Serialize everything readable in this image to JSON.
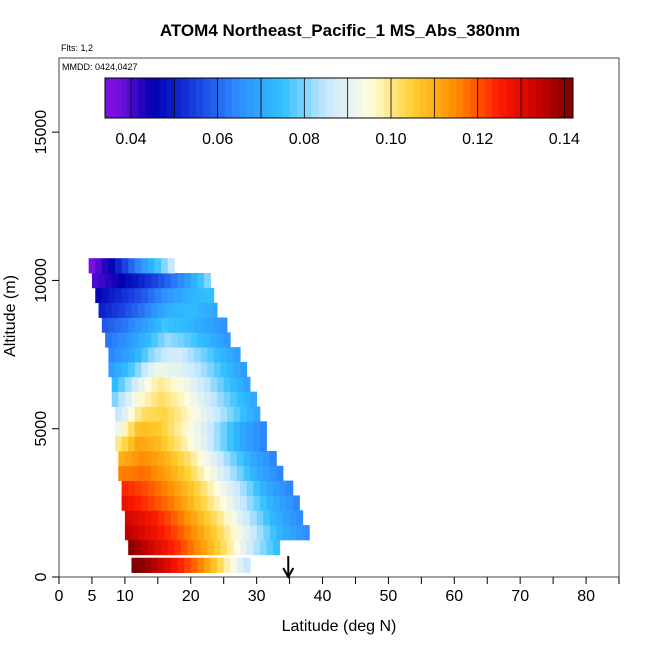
{
  "chart_data": {
    "type": "heatmap",
    "title": "ATOM4 Northeast_Pacific_1 MS_Abs_380nm",
    "flights_text": "Flts: 1,2",
    "mmdd_text": "MMDD: 0424,0427",
    "xlabel": "Latitude (deg N)",
    "ylabel": "Altitude (m)",
    "xlim": [
      0,
      85
    ],
    "ylim": [
      0,
      17500
    ],
    "x_ticks": [
      0,
      5,
      10,
      20,
      30,
      40,
      50,
      60,
      70,
      80
    ],
    "y_ticks": [
      0,
      5000,
      10000,
      15000
    ],
    "colorbar": {
      "range": [
        0.034,
        0.142
      ],
      "ticks": [
        0.04,
        0.06,
        0.08,
        0.1,
        0.12,
        0.14
      ],
      "tick_labels": [
        "0.04",
        "0.06",
        "0.08",
        "0.10",
        "0.12",
        "0.14"
      ],
      "breaks": [
        0.034,
        0.04,
        0.05,
        0.06,
        0.07,
        0.08,
        0.09,
        0.1,
        0.11,
        0.12,
        0.13,
        0.14,
        0.142
      ],
      "colors": [
        "#7a10e0",
        "#0000b0",
        "#1a40e0",
        "#2f8fff",
        "#30c0ff",
        "#c8e8ff",
        "#fffde0",
        "#ffd030",
        "#ff8c00",
        "#ff1a00",
        "#c00000",
        "#800000"
      ]
    },
    "arrow_latitude": 34.8,
    "layers": [
      {
        "alt": 400,
        "lat_min": 11,
        "lat_max": 29,
        "profile": [
          0.142,
          0.135,
          0.125,
          0.115,
          0.1,
          0.085
        ]
      },
      {
        "alt": 1000,
        "lat_min": 10.5,
        "lat_max": 33.5,
        "profile": [
          0.14,
          0.131,
          0.122,
          0.112,
          0.1,
          0.085,
          0.075
        ]
      },
      {
        "alt": 1500,
        "lat_min": 10,
        "lat_max": 38,
        "profile": [
          0.135,
          0.128,
          0.12,
          0.11,
          0.098,
          0.085,
          0.072,
          0.065
        ]
      },
      {
        "alt": 2000,
        "lat_min": 10,
        "lat_max": 37,
        "profile": [
          0.132,
          0.126,
          0.118,
          0.108,
          0.097,
          0.084,
          0.072,
          0.065
        ]
      },
      {
        "alt": 2500,
        "lat_min": 9.5,
        "lat_max": 36,
        "profile": [
          0.128,
          0.122,
          0.116,
          0.106,
          0.095,
          0.083,
          0.072,
          0.064
        ]
      },
      {
        "alt": 3000,
        "lat_min": 9.5,
        "lat_max": 35,
        "profile": [
          0.124,
          0.12,
          0.114,
          0.105,
          0.094,
          0.083,
          0.071,
          0.064
        ]
      },
      {
        "alt": 3500,
        "lat_min": 9,
        "lat_max": 34,
        "profile": [
          0.116,
          0.118,
          0.112,
          0.104,
          0.093,
          0.082,
          0.071,
          0.064
        ]
      },
      {
        "alt": 4000,
        "lat_min": 9,
        "lat_max": 32.5,
        "profile": [
          0.11,
          0.115,
          0.11,
          0.102,
          0.092,
          0.081,
          0.071,
          0.064
        ]
      },
      {
        "alt": 4500,
        "lat_min": 8.5,
        "lat_max": 31.5,
        "profile": [
          0.1,
          0.112,
          0.108,
          0.1,
          0.091,
          0.08,
          0.07,
          0.064
        ]
      },
      {
        "alt": 5000,
        "lat_min": 8.5,
        "lat_max": 31,
        "profile": [
          0.092,
          0.108,
          0.106,
          0.098,
          0.09,
          0.08,
          0.07,
          0.064
        ]
      },
      {
        "alt": 5500,
        "lat_min": 8.5,
        "lat_max": 30.5,
        "profile": [
          0.085,
          0.102,
          0.104,
          0.097,
          0.088,
          0.079,
          0.07
        ]
      },
      {
        "alt": 6000,
        "lat_min": 8,
        "lat_max": 29.5,
        "profile": [
          0.08,
          0.095,
          0.102,
          0.096,
          0.087,
          0.078,
          0.07
        ]
      },
      {
        "alt": 6500,
        "lat_min": 8,
        "lat_max": 28.5,
        "profile": [
          0.074,
          0.088,
          0.1,
          0.094,
          0.086,
          0.077,
          0.069
        ]
      },
      {
        "alt": 7000,
        "lat_min": 7.5,
        "lat_max": 28,
        "profile": [
          0.068,
          0.078,
          0.092,
          0.09,
          0.084,
          0.076,
          0.068
        ]
      },
      {
        "alt": 7500,
        "lat_min": 7.5,
        "lat_max": 27,
        "profile": [
          0.064,
          0.07,
          0.082,
          0.088,
          0.082,
          0.075,
          0.068
        ]
      },
      {
        "alt": 8000,
        "lat_min": 7,
        "lat_max": 26,
        "profile": [
          0.062,
          0.066,
          0.074,
          0.082,
          0.078,
          0.073,
          0.067
        ]
      },
      {
        "alt": 8500,
        "lat_min": 6.5,
        "lat_max": 25,
        "profile": [
          0.058,
          0.062,
          0.068,
          0.076,
          0.074,
          0.07,
          0.066
        ]
      },
      {
        "alt": 9000,
        "lat_min": 6,
        "lat_max": 24,
        "profile": [
          0.05,
          0.056,
          0.063,
          0.072,
          0.074,
          0.07
        ]
      },
      {
        "alt": 9500,
        "lat_min": 5.5,
        "lat_max": 23.5,
        "profile": [
          0.046,
          0.052,
          0.058,
          0.066,
          0.072,
          0.075
        ]
      },
      {
        "alt": 10000,
        "lat_min": 5,
        "lat_max": 22.5,
        "profile": [
          0.04,
          0.044,
          0.05,
          0.058,
          0.066,
          0.08
        ]
      },
      {
        "alt": 10500,
        "lat_min": 4.5,
        "lat_max": 17.5,
        "profile": [
          0.036,
          0.046,
          0.06,
          0.072,
          0.085
        ]
      }
    ]
  }
}
